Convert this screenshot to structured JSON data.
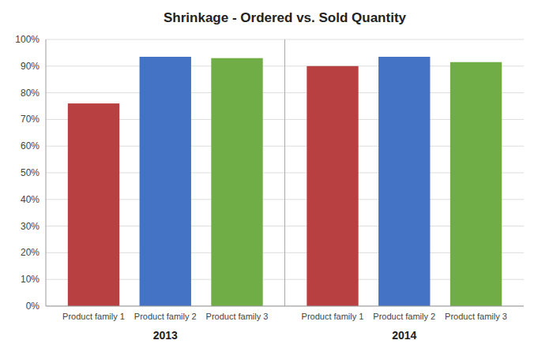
{
  "chart_data": {
    "type": "bar",
    "title": "Shrinkage - Ordered vs. Sold Quantity",
    "categories": [
      "2013",
      "2014"
    ],
    "series": [
      {
        "name": "Product family 1",
        "color": "#b94040",
        "values": [
          0.76,
          0.9
        ]
      },
      {
        "name": "Product family 2",
        "color": "#4472c4",
        "values": [
          0.935,
          0.935
        ]
      },
      {
        "name": "Product family 3",
        "color": "#70ad47",
        "values": [
          0.93,
          0.915
        ]
      }
    ],
    "ylim": [
      0.0,
      1.0
    ],
    "yticks": [
      {
        "value": 0.0,
        "label": "0%"
      },
      {
        "value": 0.1,
        "label": "10%"
      },
      {
        "value": 0.2,
        "label": "20%"
      },
      {
        "value": 0.3,
        "label": "30%"
      },
      {
        "value": 0.4,
        "label": "40%"
      },
      {
        "value": 0.5,
        "label": "50%"
      },
      {
        "value": 0.6,
        "label": "60%"
      },
      {
        "value": 0.7,
        "label": "70%"
      },
      {
        "value": 0.8,
        "label": "80%"
      },
      {
        "value": 0.9,
        "label": "90%"
      },
      {
        "value": 1.0,
        "label": "100%"
      }
    ],
    "grid": true
  }
}
